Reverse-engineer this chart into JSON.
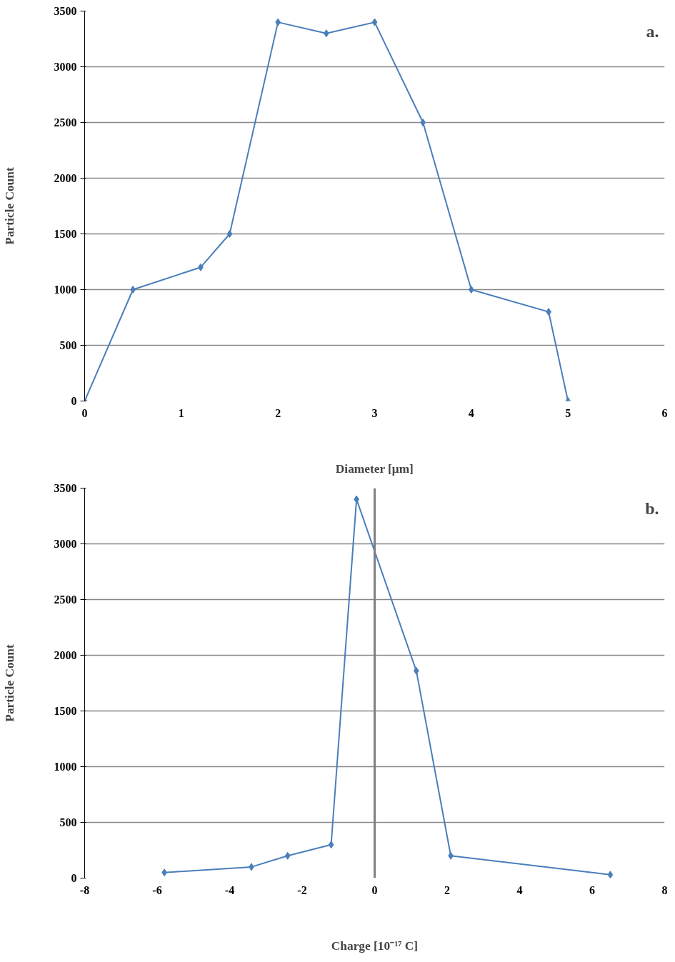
{
  "chart_data": [
    {
      "type": "line",
      "xlabel": "Diameter [μm]",
      "ylabel": "Particle Count",
      "annotations": [
        "a."
      ],
      "x": [
        0,
        0.5,
        1.2,
        1.5,
        2,
        2.5,
        3,
        3.5,
        4,
        4.8,
        5
      ],
      "series": [
        {
          "color": "#4a7ebb",
          "values": [
            0,
            1000,
            1200,
            1500,
            3400,
            3300,
            3400,
            2500,
            1000,
            800,
            0
          ]
        }
      ],
      "xlim": [
        0,
        6
      ],
      "xticks": [
        0,
        1,
        2,
        3,
        4,
        5,
        6
      ],
      "ylim": [
        0,
        3500
      ],
      "yticks": [
        0,
        500,
        1000,
        1500,
        2000,
        2500,
        3000,
        3500
      ],
      "grid": "y",
      "marker": "diamond",
      "line_style": "solid"
    },
    {
      "type": "line",
      "xlabel": "Charge [10⁻¹⁷ C]",
      "ylabel": "Particle Count",
      "annotations": [
        "b."
      ],
      "x": [
        -5.8,
        -3.4,
        -2.4,
        -1.2,
        -0.5,
        1.15,
        2.1,
        6.5
      ],
      "series": [
        {
          "color": "#4a7ebb",
          "values": [
            50,
            100,
            200,
            300,
            3400,
            1860,
            200,
            30
          ]
        }
      ],
      "xlim": [
        -8,
        8
      ],
      "xticks": [
        -8,
        -6,
        -4,
        -2,
        0,
        2,
        4,
        6,
        8
      ],
      "ylim": [
        0,
        3500
      ],
      "yticks": [
        0,
        500,
        1000,
        1500,
        2000,
        2500,
        3000,
        3500
      ],
      "ref_lines": [
        {
          "axis": "x",
          "value": 0,
          "color": "#808080"
        }
      ],
      "grid": "y",
      "marker": "diamond",
      "line_style": "solid"
    }
  ]
}
